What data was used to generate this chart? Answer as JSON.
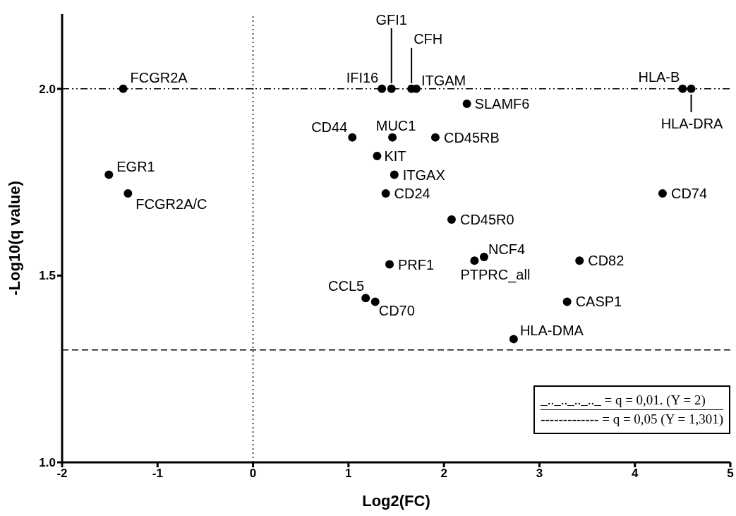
{
  "chart_data": {
    "type": "scatter",
    "xlabel": "Log2(FC)",
    "ylabel": "-Log10(q value)",
    "xlim": [
      -2,
      5
    ],
    "xticks": [
      -2,
      -1,
      0,
      1,
      2,
      3,
      4,
      5
    ],
    "ylim": [
      1,
      2.2
    ],
    "yticks": [
      {
        "value": 1,
        "label": "1.0"
      },
      {
        "value": 1.5,
        "label": "1.5"
      },
      {
        "value": 2,
        "label": "2.0"
      }
    ],
    "marker": "circle",
    "series": [
      {
        "color": "#000000",
        "x": [
          -1.36,
          -1.51,
          -1.31,
          1.35,
          1.45,
          1.66,
          1.71,
          4.5,
          4.59,
          2.24,
          1.04,
          1.46,
          1.91,
          1.3,
          1.48,
          1.39,
          4.29,
          2.08,
          2.42,
          2.32,
          3.42,
          1.43,
          1.18,
          1.28,
          3.29,
          2.73
        ],
        "values": [
          2.0,
          1.77,
          1.72,
          2.0,
          2.0,
          2.0,
          2.0,
          2.0,
          2.0,
          1.96,
          1.87,
          1.87,
          1.87,
          1.82,
          1.77,
          1.72,
          1.72,
          1.65,
          1.55,
          1.54,
          1.54,
          1.53,
          1.44,
          1.43,
          1.43,
          1.33
        ]
      }
    ],
    "ref_lines": [
      {
        "axis": "y",
        "value": 2,
        "line_style": "dashdot",
        "color": "#000000"
      },
      {
        "axis": "y",
        "value": 1.301,
        "line_style": "dashed",
        "color": "#000000"
      },
      {
        "axis": "x",
        "value": 0,
        "line_style": "dotted",
        "color": "#000000"
      }
    ],
    "annotations": [
      {
        "text": "FCGR2A",
        "x": -1.36,
        "y": 2.0
      },
      {
        "text": "EGR1",
        "x": -1.51,
        "y": 1.77
      },
      {
        "text": "FCGR2A/C",
        "x": -1.31,
        "y": 1.72
      },
      {
        "text": "IFI16",
        "x": 1.35,
        "y": 2.0
      },
      {
        "text": "GFI1",
        "x": 1.45,
        "y": 2.0
      },
      {
        "text": "CFH",
        "x": 1.66,
        "y": 2.0
      },
      {
        "text": "ITGAM",
        "x": 1.71,
        "y": 2.0
      },
      {
        "text": "HLA-B",
        "x": 4.5,
        "y": 2.0
      },
      {
        "text": "HLA-DRA",
        "x": 4.59,
        "y": 2.0
      },
      {
        "text": "SLAMF6",
        "x": 2.24,
        "y": 1.96
      },
      {
        "text": "CD44",
        "x": 1.04,
        "y": 1.87
      },
      {
        "text": "MUC1",
        "x": 1.46,
        "y": 1.87
      },
      {
        "text": "CD45RB",
        "x": 1.91,
        "y": 1.87
      },
      {
        "text": "KIT",
        "x": 1.3,
        "y": 1.82
      },
      {
        "text": "ITGAX",
        "x": 1.48,
        "y": 1.77
      },
      {
        "text": "CD24",
        "x": 1.39,
        "y": 1.72
      },
      {
        "text": "CD74",
        "x": 4.29,
        "y": 1.72
      },
      {
        "text": "CD45R0",
        "x": 2.08,
        "y": 1.65
      },
      {
        "text": "NCF4",
        "x": 2.42,
        "y": 1.55
      },
      {
        "text": "PTPRC_all",
        "x": 2.32,
        "y": 1.54
      },
      {
        "text": "CD82",
        "x": 3.42,
        "y": 1.54
      },
      {
        "text": "PRF1",
        "x": 1.43,
        "y": 1.53
      },
      {
        "text": "CCL5",
        "x": 1.18,
        "y": 1.44
      },
      {
        "text": "CD70",
        "x": 1.28,
        "y": 1.43
      },
      {
        "text": "CASP1",
        "x": 3.29,
        "y": 1.43
      },
      {
        "text": "HLA-DMA",
        "x": 2.73,
        "y": 1.33
      },
      "_.._.._.._.._ = q = 0,01. (Y = 2)",
      "------------- = q = 0,05 (Y = 1,301)"
    ]
  }
}
